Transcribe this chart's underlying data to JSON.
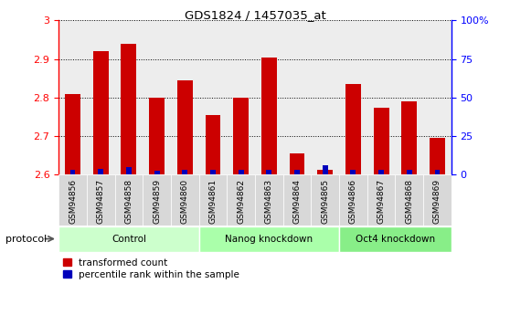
{
  "title": "GDS1824 / 1457035_at",
  "samples": [
    "GSM94856",
    "GSM94857",
    "GSM94858",
    "GSM94859",
    "GSM94860",
    "GSM94861",
    "GSM94862",
    "GSM94863",
    "GSM94864",
    "GSM94865",
    "GSM94866",
    "GSM94867",
    "GSM94868",
    "GSM94869"
  ],
  "transformed_count": [
    2.81,
    2.92,
    2.94,
    2.8,
    2.845,
    2.755,
    2.8,
    2.905,
    2.655,
    2.612,
    2.835,
    2.775,
    2.79,
    2.695
  ],
  "percentile_rank_pct": [
    3.0,
    4.0,
    5.0,
    2.5,
    3.0,
    3.0,
    3.0,
    3.5,
    3.0,
    6.0,
    3.0,
    3.0,
    3.0,
    3.0
  ],
  "bar_color_red": "#cc0000",
  "bar_color_blue": "#0000bb",
  "ylim_left": [
    2.6,
    3.0
  ],
  "ylim_right": [
    0,
    100
  ],
  "yticks_left": [
    2.6,
    2.7,
    2.8,
    2.9,
    3.0
  ],
  "ytick_labels_left": [
    "2.6",
    "2.7",
    "2.8",
    "2.9",
    "3"
  ],
  "yticks_right": [
    0,
    25,
    50,
    75,
    100
  ],
  "ytick_labels_right": [
    "0",
    "25",
    "50",
    "75",
    "100%"
  ],
  "groups": [
    {
      "label": "Control",
      "start": 0,
      "end": 4
    },
    {
      "label": "Nanog knockdown",
      "start": 5,
      "end": 9
    },
    {
      "label": "Oct4 knockdown",
      "start": 10,
      "end": 13
    }
  ],
  "group_colors": [
    "#ccffcc",
    "#aaffaa",
    "#88ee88"
  ],
  "protocol_label": "protocol",
  "legend_red": "transformed count",
  "legend_blue": "percentile rank within the sample",
  "base_value": 2.6,
  "percentile_scale": 0.4,
  "col_bg_odd": "#d8d8d8",
  "col_bg_even": "#e8e8e8"
}
